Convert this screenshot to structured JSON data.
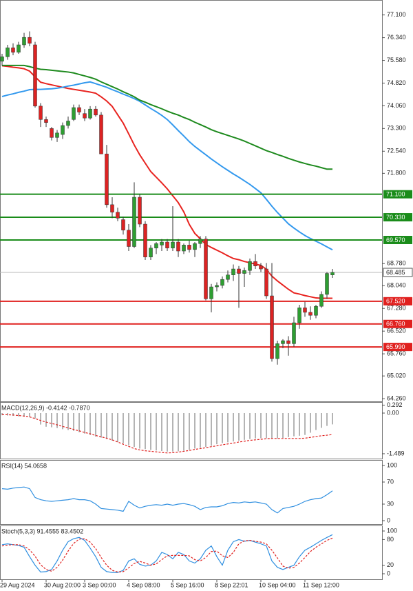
{
  "chart_data": [
    {
      "type": "candlestick",
      "categories": [
        "29 Aug 2024",
        null,
        null,
        null,
        null,
        null,
        null,
        null,
        "30 Aug 20:00",
        null,
        null,
        null,
        null,
        null,
        null,
        "3 Sep 00:00",
        null,
        null,
        null,
        null,
        null,
        null,
        null,
        "4 Sep 08:00",
        null,
        null,
        null,
        null,
        null,
        null,
        null,
        "5 Sep 16:00",
        null,
        null,
        null,
        null,
        null,
        null,
        null,
        "8 Sep 22:01",
        null,
        null,
        null,
        null,
        null,
        null,
        null,
        "10 Sep 04:00",
        null,
        null,
        null,
        null,
        null,
        null,
        null,
        "11 Sep 12:00",
        null,
        null,
        null,
        null,
        null
      ],
      "open": [
        75.55,
        75.7,
        76.0,
        75.85,
        76.1,
        76.35,
        76.1,
        74.05,
        73.6,
        73.3,
        73.0,
        73.1,
        73.4,
        73.6,
        74.0,
        73.8,
        73.65,
        73.95,
        73.75,
        72.45,
        70.75,
        70.5,
        70.25,
        69.9,
        69.35,
        71.0,
        70.1,
        69.0,
        69.3,
        69.4,
        69.5,
        69.3,
        69.5,
        69.2,
        69.4,
        69.25,
        69.45,
        69.6,
        67.6,
        68.0,
        68.05,
        68.25,
        68.4,
        68.6,
        68.45,
        68.55,
        68.85,
        68.7,
        68.6,
        67.7,
        65.6,
        66.1,
        66.2,
        66.1,
        66.8,
        67.3,
        67.15,
        67.05,
        67.35,
        67.75,
        68.4
      ],
      "high": [
        75.8,
        76.1,
        76.15,
        76.2,
        76.5,
        76.55,
        76.2,
        74.15,
        73.7,
        73.35,
        73.25,
        73.5,
        73.7,
        74.1,
        74.1,
        73.95,
        74.05,
        74.05,
        73.85,
        72.75,
        71.0,
        70.65,
        70.35,
        70.1,
        71.5,
        71.1,
        70.2,
        69.4,
        69.5,
        69.6,
        69.6,
        70.7,
        69.6,
        69.45,
        69.55,
        69.5,
        69.7,
        69.7,
        68.1,
        68.15,
        68.35,
        68.55,
        68.75,
        68.7,
        68.65,
        68.95,
        69.1,
        68.8,
        68.8,
        68.8,
        66.2,
        66.25,
        66.35,
        67.0,
        67.4,
        67.5,
        67.35,
        67.4,
        67.85,
        68.5,
        68.6
      ],
      "low": [
        75.4,
        75.6,
        75.75,
        75.8,
        76.0,
        76.05,
        74.0,
        73.35,
        73.35,
        72.9,
        72.85,
        72.95,
        73.3,
        73.55,
        73.75,
        73.55,
        73.6,
        73.7,
        72.45,
        70.65,
        70.3,
        70.2,
        69.75,
        69.2,
        69.3,
        70.0,
        68.9,
        68.9,
        69.1,
        69.2,
        69.2,
        69.2,
        69.0,
        69.1,
        69.15,
        69.0,
        69.3,
        67.55,
        67.15,
        67.85,
        67.95,
        68.15,
        68.2,
        67.3,
        68.0,
        68.4,
        68.6,
        68.5,
        67.6,
        65.5,
        65.4,
        65.95,
        65.7,
        66.0,
        66.6,
        67.0,
        66.9,
        66.95,
        67.3,
        67.6,
        68.3
      ],
      "close": [
        75.7,
        76.0,
        75.85,
        76.1,
        76.35,
        76.15,
        74.05,
        73.6,
        73.5,
        73.0,
        73.15,
        73.4,
        73.55,
        74.0,
        73.85,
        73.65,
        73.95,
        73.75,
        72.45,
        70.75,
        70.5,
        70.3,
        69.9,
        69.35,
        71.0,
        70.1,
        69.0,
        69.3,
        69.45,
        69.5,
        69.3,
        69.5,
        69.2,
        69.4,
        69.25,
        69.45,
        69.6,
        67.6,
        68.0,
        68.05,
        68.25,
        68.4,
        68.6,
        68.45,
        68.55,
        68.85,
        68.7,
        68.6,
        67.7,
        65.6,
        66.1,
        66.2,
        66.1,
        66.8,
        67.3,
        67.15,
        67.05,
        67.35,
        67.75,
        68.45,
        68.485
      ],
      "up_color": "#2e9e32",
      "down_color": "#dc2323",
      "wick_color": "#333333",
      "moving_averages": [
        {
          "color": "#e8231f",
          "values": [
            75.4,
            75.38,
            75.35,
            75.33,
            75.3,
            75.22,
            75.03,
            74.85,
            74.8,
            74.76,
            74.72,
            74.68,
            74.64,
            74.61,
            74.58,
            74.55,
            74.52,
            74.48,
            74.36,
            74.22,
            74.04,
            73.76,
            73.48,
            73.12,
            72.75,
            72.42,
            72.14,
            71.86,
            71.67,
            71.48,
            71.28,
            71.05,
            70.82,
            70.51,
            70.09,
            69.79,
            69.61,
            69.42,
            69.32,
            69.23,
            69.14,
            69.04,
            68.95,
            68.91,
            68.85,
            68.81,
            68.76,
            68.72,
            68.59,
            68.36,
            68.2,
            68.06,
            67.92,
            67.8,
            67.76,
            67.71,
            67.67,
            67.63,
            67.62,
            67.62,
            67.62
          ]
        },
        {
          "color": "#3399ee",
          "values": [
            74.37,
            74.42,
            74.46,
            74.51,
            74.55,
            74.6,
            74.61,
            74.61,
            74.62,
            74.63,
            74.65,
            74.68,
            74.72,
            74.75,
            74.79,
            74.83,
            74.86,
            74.8,
            74.74,
            74.68,
            74.6,
            74.53,
            74.45,
            74.38,
            74.3,
            74.21,
            74.09,
            73.97,
            73.86,
            73.74,
            73.6,
            73.42,
            73.23,
            73.05,
            72.86,
            72.7,
            72.56,
            72.42,
            72.28,
            72.15,
            72.02,
            71.9,
            71.78,
            71.67,
            71.55,
            71.43,
            71.29,
            71.15,
            70.93,
            70.7,
            70.49,
            70.3,
            70.11,
            69.97,
            69.84,
            69.72,
            69.62,
            69.53,
            69.44,
            69.34,
            69.24
          ]
        },
        {
          "color": "#1e8a1e",
          "values": [
            75.41,
            75.41,
            75.41,
            75.41,
            75.41,
            75.37,
            75.32,
            75.28,
            75.27,
            75.25,
            75.23,
            75.21,
            75.19,
            75.16,
            75.11,
            75.06,
            75.01,
            74.95,
            74.86,
            74.78,
            74.7,
            74.62,
            74.53,
            74.45,
            74.36,
            74.25,
            74.18,
            74.1,
            74.03,
            73.96,
            73.88,
            73.81,
            73.75,
            73.67,
            73.6,
            73.51,
            73.43,
            73.35,
            73.26,
            73.19,
            73.13,
            73.07,
            73.01,
            72.95,
            72.88,
            72.8,
            72.72,
            72.64,
            72.56,
            72.5,
            72.43,
            72.37,
            72.3,
            72.24,
            72.18,
            72.13,
            72.08,
            72.04,
            71.99,
            71.94,
            71.94
          ]
        }
      ],
      "levels": [
        {
          "value": 71.1,
          "label": "71.100",
          "color": "#1a8c1a"
        },
        {
          "value": 70.33,
          "label": "70.330",
          "color": "#1a8c1a"
        },
        {
          "value": 69.57,
          "label": "69.570",
          "color": "#1a8c1a"
        },
        {
          "value": 67.52,
          "label": "67.520",
          "color": "#e0201e"
        },
        {
          "value": 66.76,
          "label": "66.760",
          "color": "#e0201e"
        },
        {
          "value": 65.99,
          "label": "65.990",
          "color": "#e0201e"
        }
      ],
      "last_price": 68.485,
      "ylim": [
        64.17,
        77.6
      ],
      "yticks": [
        {
          "value": 77.1,
          "label": "77.100"
        },
        {
          "value": 76.34,
          "label": "76.340"
        },
        {
          "value": 75.58,
          "label": "75.580"
        },
        {
          "value": 74.82,
          "label": "74.820"
        },
        {
          "value": 74.06,
          "label": "74.060"
        },
        {
          "value": 73.3,
          "label": "73.300"
        },
        {
          "value": 72.54,
          "label": "72.540"
        },
        {
          "value": 71.8,
          "label": "71.800"
        },
        {
          "value": 68.78,
          "label": "68.780"
        },
        {
          "value": 68.04,
          "label": "68.040"
        },
        {
          "value": 67.28,
          "label": "67.280"
        },
        {
          "value": 66.52,
          "label": "66.520"
        },
        {
          "value": 65.76,
          "label": "65.760"
        },
        {
          "value": 65.02,
          "label": "65.020"
        },
        {
          "value": 64.26,
          "label": "64.260"
        }
      ]
    },
    {
      "type": "bar",
      "title": "MACD(12,26,9) -0.4142 -0.7870",
      "series": [
        {
          "type": "bar",
          "color": "#b4b4b4",
          "values": [
            -0.08,
            -0.09,
            -0.1,
            -0.12,
            -0.13,
            -0.14,
            -0.2,
            -0.42,
            -0.5,
            -0.52,
            -0.55,
            -0.59,
            -0.62,
            -0.65,
            -0.7,
            -0.75,
            -0.8,
            -0.86,
            -0.9,
            -0.95,
            -1.01,
            -1.06,
            -1.11,
            -1.18,
            -1.24,
            -1.3,
            -1.32,
            -1.35,
            -1.37,
            -1.39,
            -1.41,
            -1.41,
            -1.4,
            -1.38,
            -1.34,
            -1.3,
            -1.27,
            -1.24,
            -1.2,
            -1.14,
            -1.1,
            -1.07,
            -1.04,
            -1.01,
            -0.98,
            -0.95,
            -0.93,
            -0.92,
            -0.92,
            -0.93,
            -0.93,
            -0.91,
            -0.88,
            -0.85,
            -0.83,
            -0.8,
            -0.72,
            -0.62,
            -0.54,
            -0.47,
            -0.4142
          ]
        },
        {
          "type": "line",
          "dash": true,
          "color": "#e0201e",
          "values": [
            -0.05,
            -0.06,
            -0.07,
            -0.09,
            -0.11,
            -0.14,
            -0.2,
            -0.27,
            -0.33,
            -0.38,
            -0.43,
            -0.49,
            -0.54,
            -0.6,
            -0.65,
            -0.71,
            -0.76,
            -0.82,
            -0.87,
            -0.92,
            -0.98,
            -1.06,
            -1.14,
            -1.22,
            -1.3,
            -1.35,
            -1.38,
            -1.4,
            -1.42,
            -1.44,
            -1.46,
            -1.45,
            -1.43,
            -1.4,
            -1.37,
            -1.33,
            -1.3,
            -1.27,
            -1.23,
            -1.2,
            -1.16,
            -1.13,
            -1.1,
            -1.06,
            -1.03,
            -1.0,
            -0.98,
            -0.96,
            -0.94,
            -0.93,
            -0.93,
            -0.93,
            -0.93,
            -0.93,
            -0.93,
            -0.92,
            -0.89,
            -0.86,
            -0.83,
            -0.81,
            -0.787
          ]
        }
      ],
      "ylim": [
        -1.667,
        0.404
      ],
      "yticks": [
        0.292,
        {
          "value": 0,
          "label": "0.00"
        },
        -1.489
      ]
    },
    {
      "type": "line",
      "title": "RSI(14) 54.0658",
      "series": [
        {
          "color": "#2f8fe0",
          "values": [
            58,
            57,
            59,
            60,
            61,
            58,
            42,
            38,
            36,
            35,
            36,
            37,
            38,
            40,
            38,
            38,
            36,
            30,
            22,
            21,
            20,
            19,
            17,
            35,
            28,
            23,
            26,
            28,
            29,
            28,
            30,
            28,
            30,
            31,
            29,
            26,
            20,
            24,
            25,
            25,
            27,
            31,
            33,
            32,
            34,
            33,
            34,
            32,
            30,
            20,
            14,
            22,
            24,
            26,
            30,
            35,
            38,
            40,
            41,
            47,
            54.0658
          ]
        }
      ],
      "ylim": [
        -6.25,
        110
      ],
      "yticks": [
        100,
        70,
        30,
        0
      ]
    },
    {
      "type": "line",
      "title": "Stoch(5,3,3) 91.4555 83.4502",
      "series": [
        {
          "color": "#2f8fe0",
          "values": [
            68,
            70,
            68,
            66,
            62,
            40,
            20,
            4,
            5,
            10,
            30,
            55,
            75,
            82,
            85,
            78,
            60,
            40,
            15,
            5,
            3,
            3,
            8,
            30,
            35,
            22,
            18,
            20,
            30,
            50,
            45,
            35,
            50,
            45,
            30,
            25,
            35,
            55,
            65,
            40,
            20,
            55,
            75,
            80,
            76,
            78,
            74,
            70,
            65,
            30,
            15,
            10,
            15,
            20,
            40,
            55,
            62,
            70,
            78,
            85,
            91.4555
          ]
        },
        {
          "color": "#e0201e",
          "dash": true,
          "values": [
            65,
            67,
            68,
            68,
            65,
            56,
            41,
            21,
            10,
            6,
            15,
            32,
            53,
            71,
            81,
            82,
            74,
            59,
            38,
            20,
            8,
            4,
            5,
            14,
            24,
            29,
            25,
            20,
            23,
            33,
            42,
            43,
            43,
            43,
            42,
            33,
            30,
            38,
            52,
            53,
            42,
            38,
            50,
            70,
            77,
            78,
            76,
            74,
            70,
            55,
            37,
            18,
            13,
            15,
            25,
            38,
            52,
            62,
            70,
            78,
            83.4502
          ]
        }
      ],
      "ylim": [
        -12.9,
        112.9
      ],
      "yticks": [
        100,
        80,
        20,
        0
      ]
    }
  ]
}
